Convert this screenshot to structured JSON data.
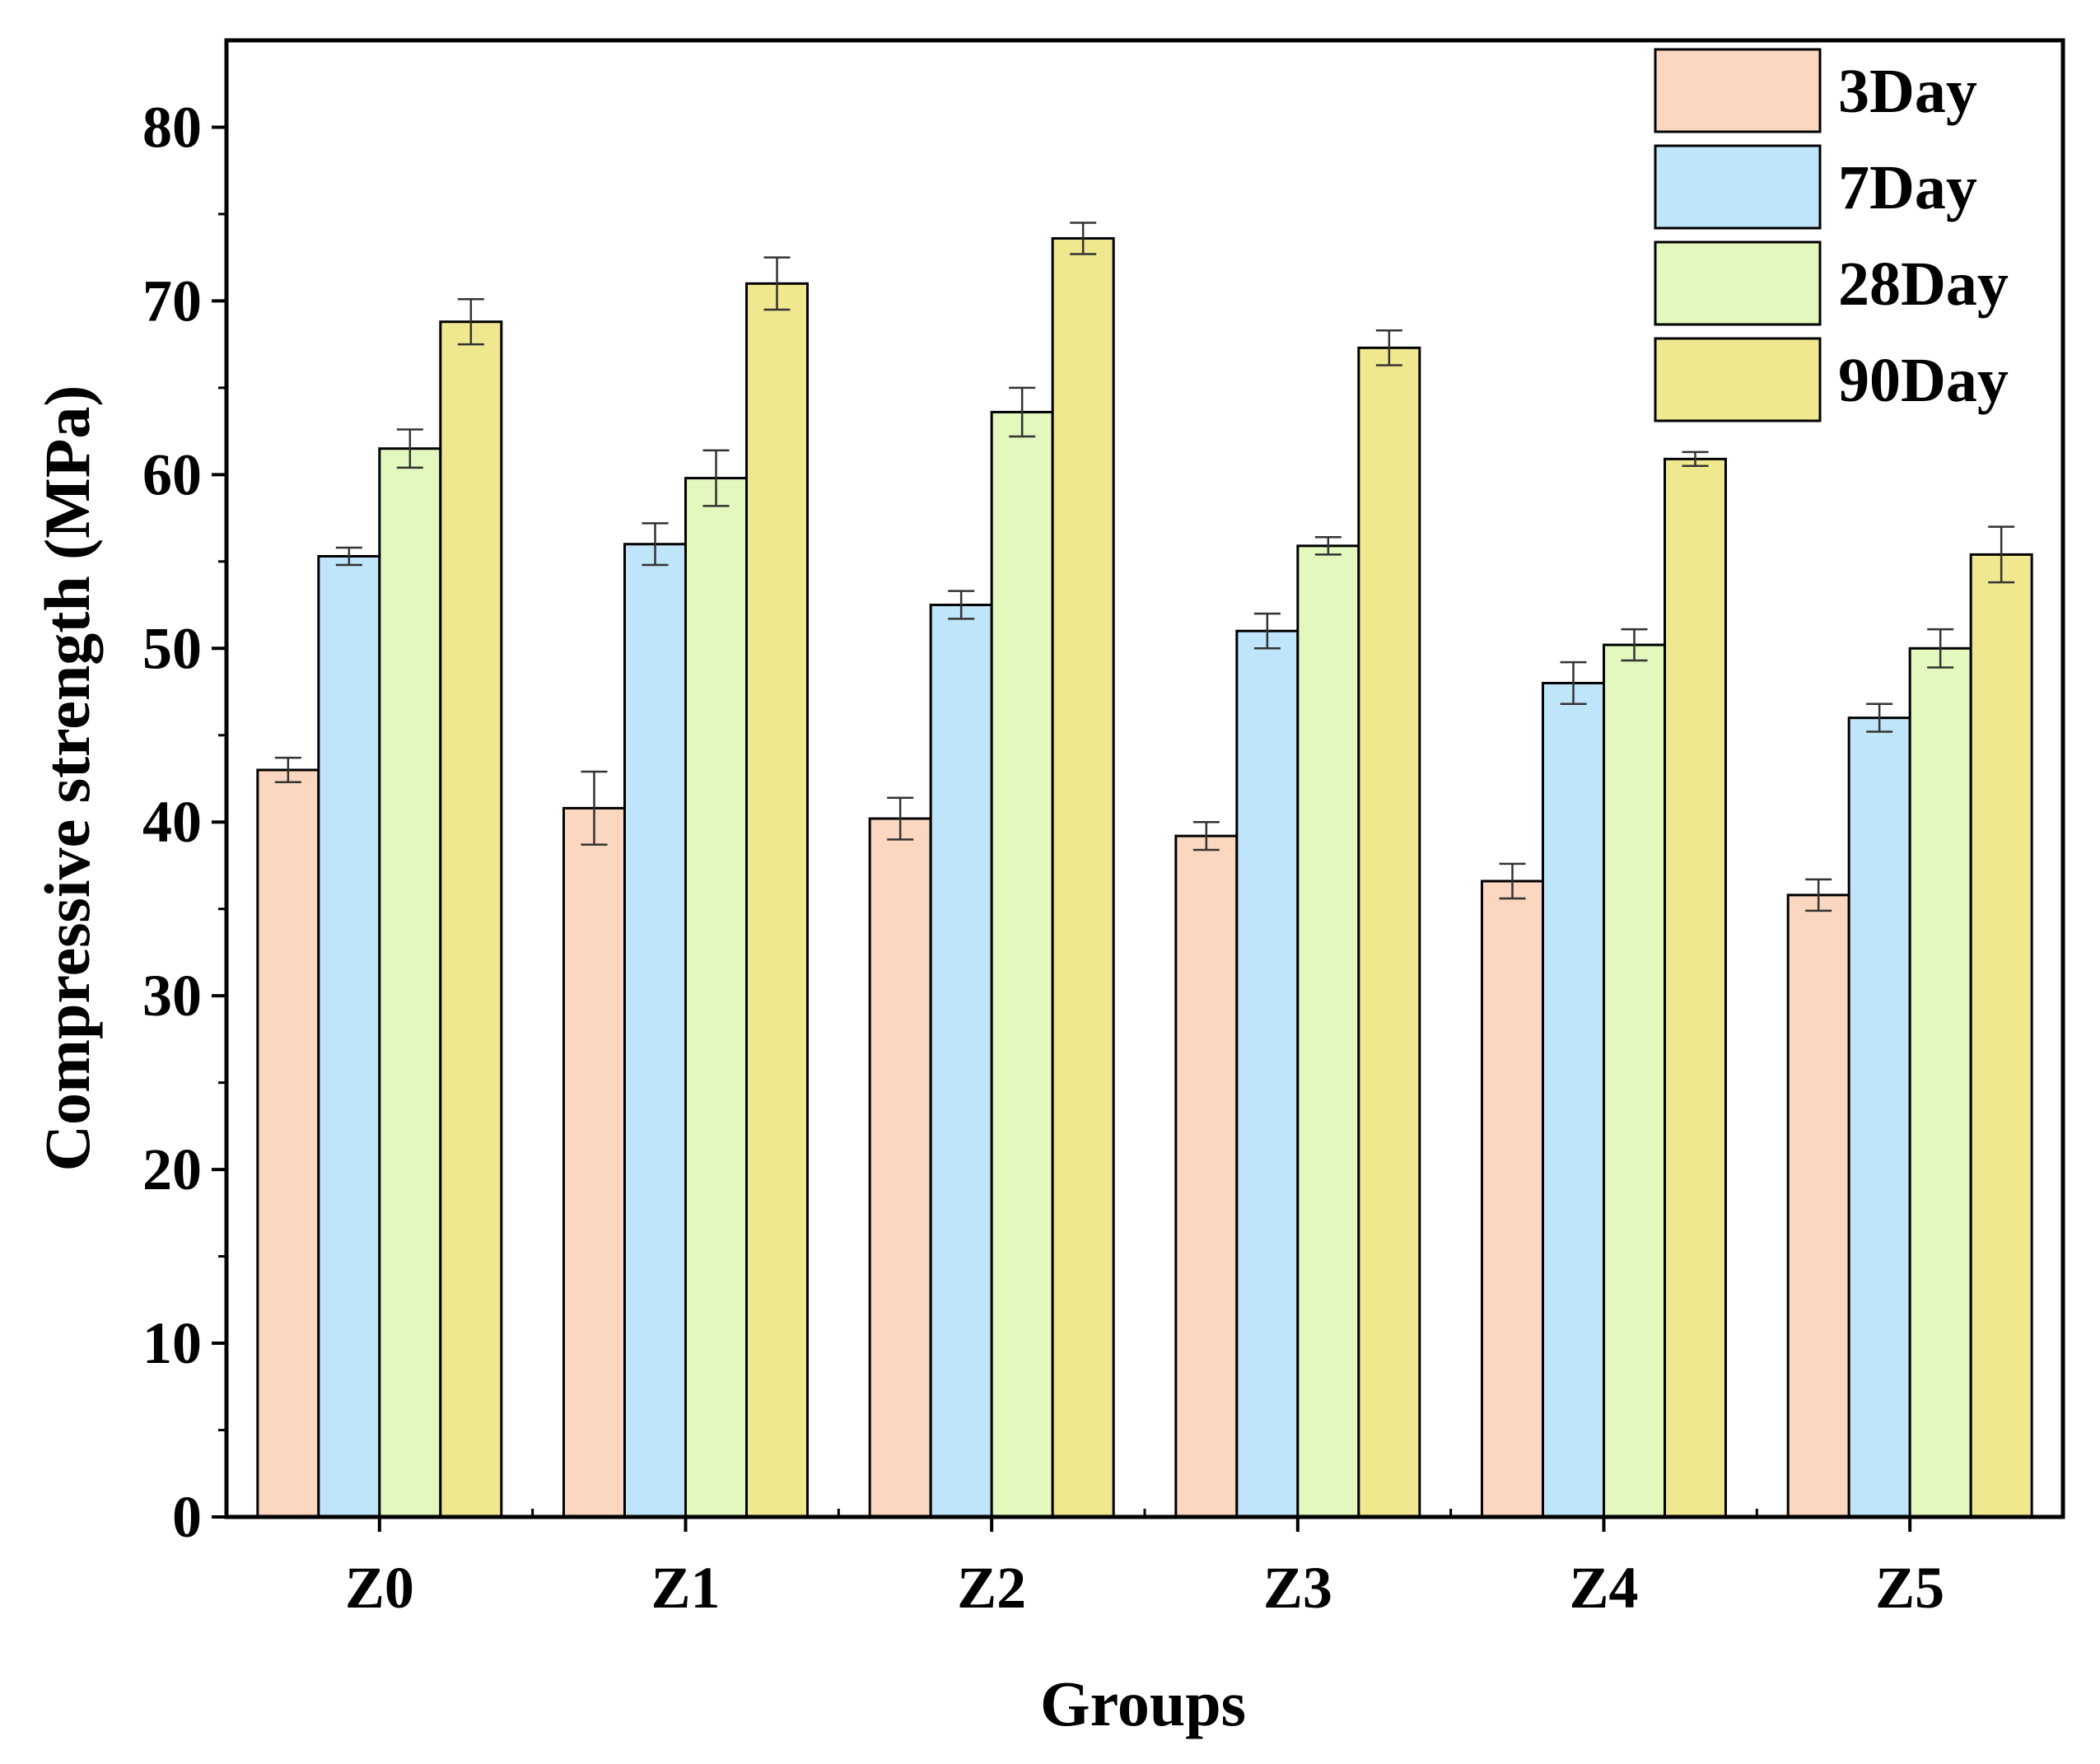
{
  "chart_data": {
    "type": "bar",
    "title": "",
    "xlabel": "Groups",
    "ylabel": "Compressive strength (MPa)",
    "ylim": [
      0,
      85
    ],
    "yticks": [
      0,
      10,
      20,
      30,
      40,
      50,
      60,
      70,
      80
    ],
    "categories": [
      "Z0",
      "Z1",
      "Z2",
      "Z3",
      "Z4",
      "Z5"
    ],
    "legend_position": "top-right",
    "grid": false,
    "series": [
      {
        "name": "3Day",
        "color": "#FAD7BE",
        "values": [
          43.0,
          40.8,
          40.2,
          39.2,
          36.6,
          35.8
        ],
        "errors": [
          0.7,
          2.1,
          1.2,
          0.8,
          1.0,
          0.9
        ]
      },
      {
        "name": "7Day",
        "color": "#BFE5FB",
        "values": [
          55.3,
          56.0,
          52.5,
          51.0,
          48.0,
          46.0
        ],
        "errors": [
          0.5,
          1.2,
          0.8,
          1.0,
          1.2,
          0.8
        ]
      },
      {
        "name": "28Day",
        "color": "#E2F8BD",
        "values": [
          61.5,
          59.8,
          63.6,
          55.9,
          50.2,
          50.0
        ],
        "errors": [
          1.1,
          1.6,
          1.4,
          0.5,
          0.9,
          1.1
        ]
      },
      {
        "name": "90Day",
        "color": "#F0E88F",
        "values": [
          68.8,
          71.0,
          73.6,
          67.3,
          60.9,
          55.4
        ],
        "errors": [
          1.3,
          1.5,
          0.9,
          1.0,
          0.4,
          1.6
        ]
      }
    ]
  }
}
